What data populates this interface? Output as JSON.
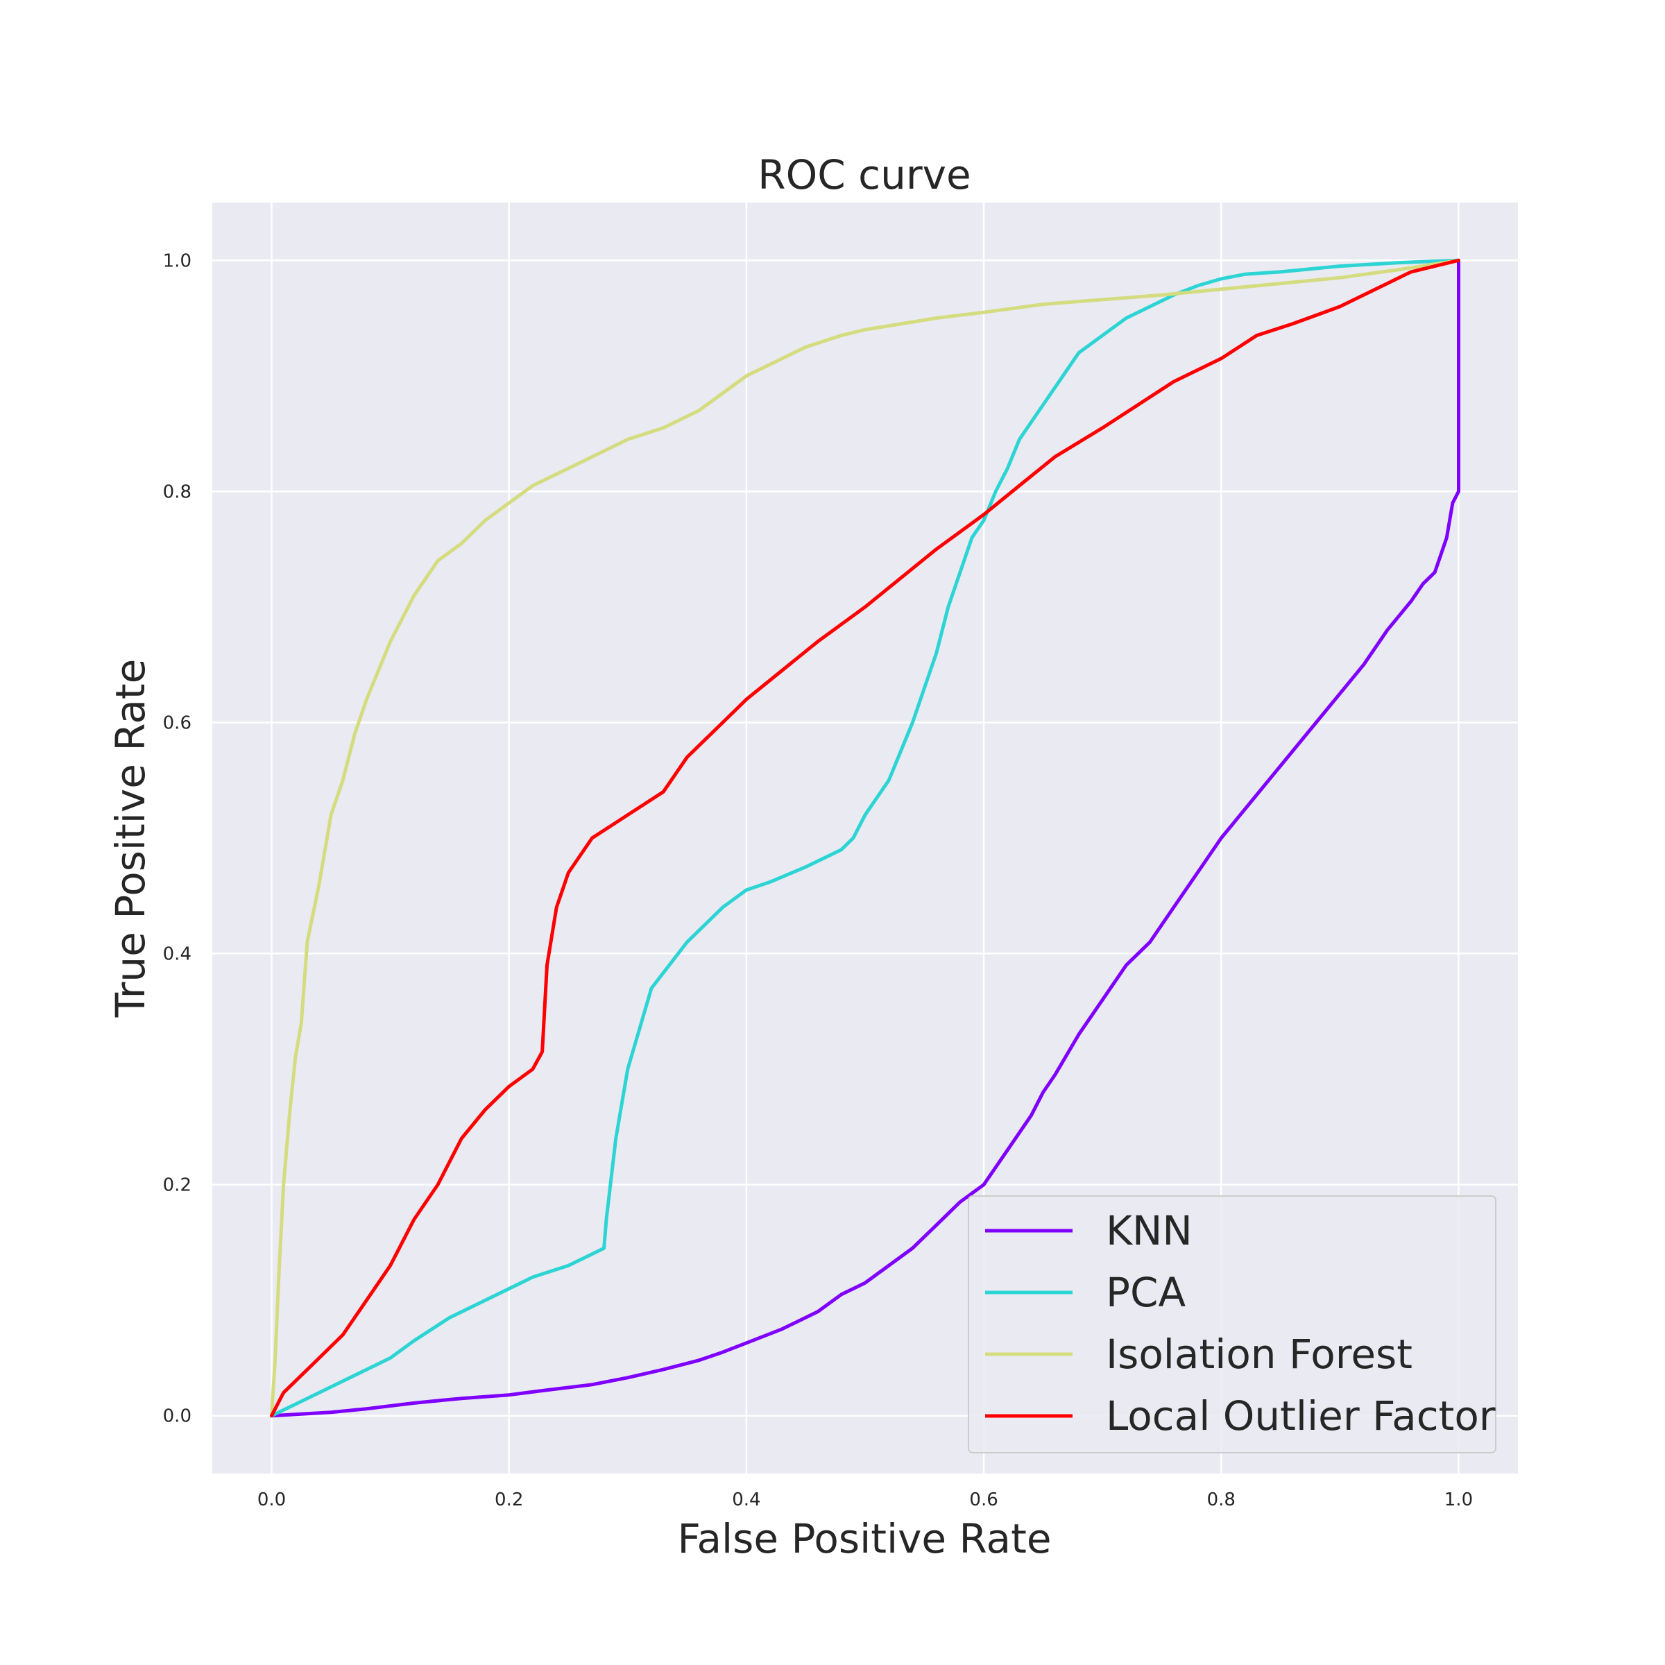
{
  "chart_data": {
    "type": "line",
    "title": "ROC curve",
    "xlabel": "False Positive Rate",
    "ylabel": "True Positive Rate",
    "xlim": [
      -0.05,
      1.05
    ],
    "ylim": [
      -0.05,
      1.05
    ],
    "xticks": [
      0.0,
      0.2,
      0.4,
      0.6,
      0.8,
      1.0
    ],
    "yticks": [
      0.0,
      0.2,
      0.4,
      0.6,
      0.8,
      1.0
    ],
    "xtick_labels": [
      "0.0",
      "0.2",
      "0.4",
      "0.6",
      "0.8",
      "1.0"
    ],
    "ytick_labels": [
      "0.0",
      "0.2",
      "0.4",
      "0.6",
      "0.8",
      "1.0"
    ],
    "grid": true,
    "legend_position": "lower-right",
    "series": [
      {
        "name": "KNN",
        "color": "#7f00ff",
        "x": [
          0,
          0.05,
          0.08,
          0.12,
          0.16,
          0.2,
          0.23,
          0.27,
          0.3,
          0.33,
          0.36,
          0.38,
          0.4,
          0.43,
          0.46,
          0.48,
          0.5,
          0.52,
          0.54,
          0.56,
          0.58,
          0.6,
          0.62,
          0.64,
          0.65,
          0.66,
          0.68,
          0.7,
          0.72,
          0.74,
          0.76,
          0.78,
          0.8,
          0.82,
          0.84,
          0.86,
          0.88,
          0.9,
          0.92,
          0.94,
          0.96,
          0.97,
          0.98,
          0.99,
          0.995,
          1.0,
          1.0
        ],
        "y": [
          0,
          0.003,
          0.006,
          0.011,
          0.015,
          0.018,
          0.022,
          0.027,
          0.033,
          0.04,
          0.048,
          0.055,
          0.063,
          0.075,
          0.09,
          0.105,
          0.115,
          0.13,
          0.145,
          0.165,
          0.185,
          0.2,
          0.23,
          0.26,
          0.28,
          0.295,
          0.33,
          0.36,
          0.39,
          0.41,
          0.44,
          0.47,
          0.5,
          0.525,
          0.55,
          0.575,
          0.6,
          0.625,
          0.65,
          0.68,
          0.705,
          0.72,
          0.73,
          0.76,
          0.79,
          0.8,
          1.0
        ]
      },
      {
        "name": "PCA",
        "color": "#2dd4d4",
        "x": [
          0,
          0.02,
          0.05,
          0.08,
          0.1,
          0.12,
          0.15,
          0.18,
          0.22,
          0.25,
          0.27,
          0.28,
          0.282,
          0.29,
          0.3,
          0.32,
          0.35,
          0.38,
          0.4,
          0.42,
          0.45,
          0.48,
          0.49,
          0.5,
          0.52,
          0.54,
          0.55,
          0.56,
          0.57,
          0.58,
          0.59,
          0.6,
          0.61,
          0.62,
          0.63,
          0.64,
          0.66,
          0.68,
          0.7,
          0.72,
          0.74,
          0.76,
          0.78,
          0.8,
          0.82,
          0.85,
          0.9,
          0.95,
          1.0
        ],
        "y": [
          0,
          0.01,
          0.025,
          0.04,
          0.05,
          0.065,
          0.085,
          0.1,
          0.12,
          0.13,
          0.14,
          0.145,
          0.17,
          0.24,
          0.3,
          0.37,
          0.41,
          0.44,
          0.455,
          0.462,
          0.475,
          0.49,
          0.5,
          0.52,
          0.55,
          0.6,
          0.63,
          0.66,
          0.7,
          0.73,
          0.76,
          0.775,
          0.8,
          0.82,
          0.845,
          0.86,
          0.89,
          0.92,
          0.935,
          0.95,
          0.96,
          0.97,
          0.978,
          0.984,
          0.988,
          0.99,
          0.995,
          0.998,
          1.0
        ]
      },
      {
        "name": "Isolation Forest",
        "color": "#d4dc7f",
        "x": [
          0,
          0.003,
          0.006,
          0.01,
          0.015,
          0.02,
          0.025,
          0.03,
          0.04,
          0.05,
          0.06,
          0.07,
          0.08,
          0.1,
          0.12,
          0.14,
          0.16,
          0.18,
          0.2,
          0.22,
          0.25,
          0.28,
          0.3,
          0.33,
          0.36,
          0.38,
          0.4,
          0.42,
          0.45,
          0.48,
          0.5,
          0.53,
          0.56,
          0.6,
          0.65,
          0.7,
          0.75,
          0.8,
          0.85,
          0.9,
          0.95,
          1.0
        ],
        "y": [
          0,
          0.05,
          0.12,
          0.2,
          0.26,
          0.31,
          0.34,
          0.41,
          0.46,
          0.52,
          0.55,
          0.59,
          0.62,
          0.67,
          0.71,
          0.74,
          0.755,
          0.775,
          0.79,
          0.805,
          0.82,
          0.835,
          0.845,
          0.855,
          0.87,
          0.885,
          0.9,
          0.91,
          0.925,
          0.935,
          0.94,
          0.945,
          0.95,
          0.955,
          0.962,
          0.966,
          0.97,
          0.975,
          0.98,
          0.985,
          0.992,
          1.0
        ]
      },
      {
        "name": "Local Outlier Factor",
        "color": "#ff0000",
        "x": [
          0,
          0.01,
          0.02,
          0.04,
          0.06,
          0.08,
          0.1,
          0.12,
          0.14,
          0.16,
          0.18,
          0.2,
          0.22,
          0.228,
          0.232,
          0.24,
          0.25,
          0.27,
          0.3,
          0.33,
          0.35,
          0.38,
          0.4,
          0.43,
          0.46,
          0.5,
          0.53,
          0.56,
          0.6,
          0.63,
          0.66,
          0.7,
          0.73,
          0.76,
          0.8,
          0.83,
          0.86,
          0.9,
          0.93,
          0.96,
          1.0
        ],
        "y": [
          0,
          0.02,
          0.03,
          0.05,
          0.07,
          0.1,
          0.13,
          0.17,
          0.2,
          0.24,
          0.265,
          0.285,
          0.3,
          0.315,
          0.39,
          0.44,
          0.47,
          0.5,
          0.52,
          0.54,
          0.57,
          0.6,
          0.62,
          0.645,
          0.67,
          0.7,
          0.725,
          0.75,
          0.78,
          0.805,
          0.83,
          0.855,
          0.875,
          0.895,
          0.915,
          0.935,
          0.945,
          0.96,
          0.975,
          0.99,
          1.0
        ]
      }
    ]
  }
}
